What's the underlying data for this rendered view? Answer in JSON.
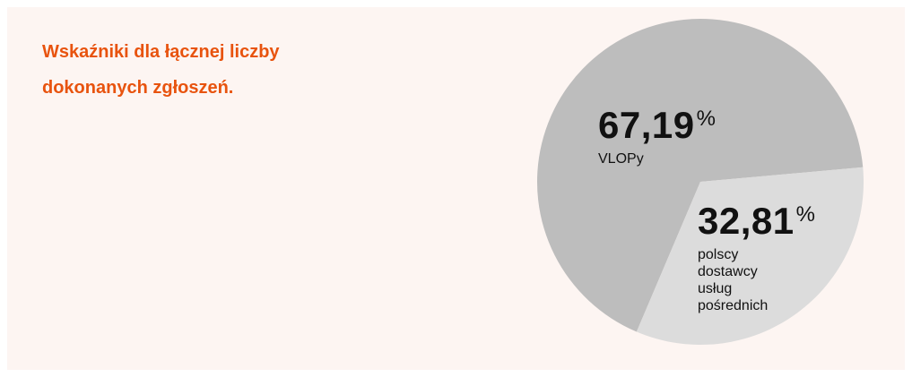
{
  "chart_data": {
    "type": "pie",
    "title": "Wskaźniki dla łącznej liczby dokonanych zgłoszeń.",
    "categories": [
      "VLOPy",
      "polscy dostawcy usług pośrednich"
    ],
    "values": [
      67.19,
      32.81
    ],
    "value_labels": [
      "67,19",
      "32,81"
    ],
    "unit": "%",
    "colors": [
      "#bdbdbd",
      "#dcdcdc"
    ]
  }
}
